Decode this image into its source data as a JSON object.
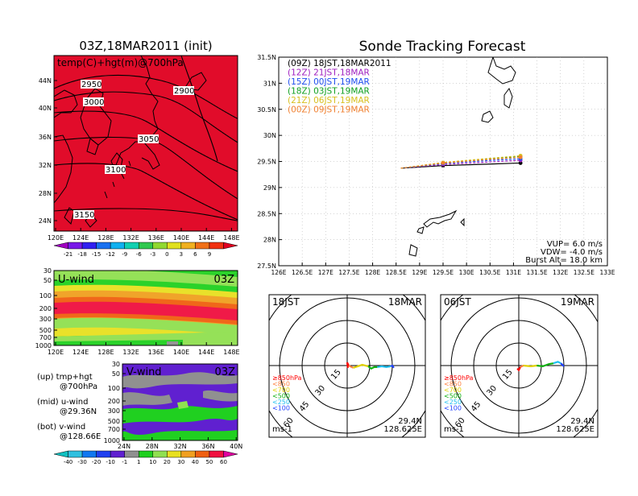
{
  "left": {
    "title": "03Z,18MAR2011 (init)",
    "map_label": "temp(C)+hgt(m)@700hPa",
    "lat_ticks": [
      "44N",
      "40N",
      "36N",
      "32N",
      "28N",
      "24N"
    ],
    "lon_ticks": [
      "120E",
      "124E",
      "128E",
      "132E",
      "136E",
      "140E",
      "144E",
      "148E"
    ],
    "contour_labels": [
      "2950",
      "2900",
      "3000",
      "3050",
      "3100",
      "3150"
    ],
    "temp_colorbar": [
      "-21",
      "-18",
      "-15",
      "-12",
      "-9",
      "-6",
      "-3",
      "0",
      "3",
      "6",
      "9"
    ],
    "u_label": "U-wind",
    "u_time": "03Z",
    "u_pressure_ticks": [
      "30",
      "50",
      "100",
      "200",
      "300",
      "500",
      "700",
      "1000"
    ],
    "u_lon_ticks": [
      "120E",
      "124E",
      "128E",
      "132E",
      "136E",
      "140E",
      "144E",
      "148E"
    ],
    "v_label": "V-wind",
    "v_time": "03Z",
    "v_pressure_ticks": [
      "30",
      "50",
      "100",
      "200",
      "300",
      "500",
      "700",
      "1000"
    ],
    "v_lat_ticks": [
      "24N",
      "28N",
      "32N",
      "36N",
      "40N"
    ],
    "legend": {
      "up1": "(up) tmp+hgt",
      "up2": "@700hPa",
      "mid1": "(mid) u-wind",
      "mid2": "@29.36N",
      "bot1": "(bot) v-wind",
      "bot2": "@128.66E"
    },
    "wind_colorbar": [
      "-40",
      "-30",
      "-20",
      "-10",
      "-1",
      "1",
      "10",
      "20",
      "30",
      "40",
      "50",
      "60"
    ]
  },
  "right": {
    "title": "Sonde Tracking Forecast",
    "lat_ticks": [
      "31.5N",
      "31N",
      "30.5N",
      "30N",
      "29.5N",
      "29N",
      "28.5N",
      "28N",
      "27.5N"
    ],
    "lon_ticks": [
      "126E",
      "126.5E",
      "127E",
      "127.5E",
      "128E",
      "128.5E",
      "129E",
      "129.5E",
      "130E",
      "130.5E",
      "131E",
      "131.5E",
      "132E",
      "132.5E",
      "133E"
    ],
    "runs": [
      {
        "label": "(09Z)  18JST,18MAR2011",
        "color": "#000000"
      },
      {
        "label": "(12Z)  21JST,18MAR",
        "color": "#a020c0"
      },
      {
        "label": "(15Z)  00JST,19MAR",
        "color": "#2050f0"
      },
      {
        "label": "(18Z)  03JST,19MAR",
        "color": "#10a020"
      },
      {
        "label": "(21Z)  06JST,19MAR",
        "color": "#d8c020"
      },
      {
        "label": "(00Z)  09JST,19MAR",
        "color": "#f08030"
      }
    ],
    "info": {
      "vup": "VUP=  6.0  m/s",
      "vdw": "VDW= -4.0  m/s",
      "burst": "Burst Alt=  18.0  km"
    }
  },
  "hodo1": {
    "time": "18JST",
    "date": "18MAR",
    "rings": [
      "15",
      "30",
      "45",
      "60"
    ],
    "levels": [
      "≥850hPa",
      "<850",
      "<700",
      "<500",
      "<250",
      "<100"
    ],
    "units": "ms-1",
    "lat": "29.4N",
    "lon": "128.625E"
  },
  "hodo2": {
    "time": "06JST",
    "date": "19MAR",
    "rings": [
      "15",
      "30",
      "45",
      "60"
    ],
    "levels": [
      "≥850hPa",
      "<850",
      "<700",
      "<500",
      "<250",
      "<100"
    ],
    "units": "ms-1",
    "lat": "29.4N",
    "lon": "128.625E"
  },
  "colors": {
    "level_colors": [
      "#ff0000",
      "#ff8040",
      "#e0d000",
      "#10b010",
      "#20c0f0",
      "#2040ff"
    ],
    "temp_scale": [
      "#a000c0",
      "#7818e8",
      "#3020f0",
      "#1870f0",
      "#10b0f0",
      "#10d0b0",
      "#30c850",
      "#90d830",
      "#e0e020",
      "#f0b020",
      "#f07018",
      "#f03010",
      "#e00020"
    ],
    "wind_scale": [
      "#10c0c0",
      "#30c0e0",
      "#1078f0",
      "#2040f0",
      "#6020d0",
      "#909090",
      "#20d020",
      "#90e050",
      "#e8e020",
      "#f0a020",
      "#f06010",
      "#f01040",
      "#e000a0"
    ]
  },
  "chart_data": [
    {
      "type": "heatmap",
      "title": "03Z,18MAR2011 (init)",
      "subtitle": "temp(C)+hgt(m)@700hPa",
      "x_ticks": [
        "120E",
        "124E",
        "128E",
        "132E",
        "136E",
        "140E",
        "144E",
        "148E"
      ],
      "y_ticks": [
        "24N",
        "28N",
        "32N",
        "36N",
        "40N",
        "44N"
      ],
      "colorbar": [
        -21,
        -18,
        -15,
        -12,
        -9,
        -6,
        -3,
        0,
        3,
        6,
        9
      ],
      "contours": [
        2900,
        2950,
        3000,
        3050,
        3100,
        3150
      ]
    },
    {
      "type": "heatmap",
      "title": "U-wind",
      "x_ticks": [
        "120E",
        "124E",
        "128E",
        "132E",
        "136E",
        "140E",
        "144E",
        "148E"
      ],
      "y_ticks": [
        30,
        50,
        100,
        200,
        300,
        500,
        700,
        1000
      ],
      "colorbar": [
        -40,
        -30,
        -20,
        -10,
        -1,
        1,
        10,
        20,
        30,
        40,
        50,
        60
      ]
    },
    {
      "type": "heatmap",
      "title": "V-wind",
      "x_ticks": [
        "24N",
        "28N",
        "32N",
        "36N",
        "40N"
      ],
      "y_ticks": [
        30,
        50,
        100,
        200,
        300,
        500,
        700,
        1000
      ],
      "colorbar": [
        -40,
        -30,
        -20,
        -10,
        -1,
        1,
        10,
        20,
        30,
        40,
        50,
        60
      ]
    },
    {
      "type": "line",
      "title": "Sonde Tracking Forecast",
      "xlim": [
        126,
        133
      ],
      "ylim": [
        27.5,
        31.5
      ],
      "launch": {
        "lon": 128.6,
        "lat": 29.37
      },
      "series": [
        {
          "name": "(09Z)  18JST,18MAR2011",
          "lon": [
            128.6,
            129.5,
            130.5,
            131.15
          ],
          "lat": [
            29.37,
            29.42,
            29.45,
            29.47
          ]
        },
        {
          "name": "(12Z)  21JST,18MAR",
          "lon": [
            128.6,
            129.5,
            130.5,
            131.15
          ],
          "lat": [
            29.37,
            29.44,
            29.49,
            29.52
          ]
        },
        {
          "name": "(15Z)  00JST,19MAR",
          "lon": [
            128.6,
            129.5,
            130.5,
            131.15
          ],
          "lat": [
            29.37,
            29.46,
            29.52,
            29.55
          ]
        },
        {
          "name": "(18Z)  03JST,19MAR",
          "lon": [
            128.6,
            129.5,
            130.5,
            131.15
          ],
          "lat": [
            29.37,
            29.47,
            29.55,
            29.59
          ]
        },
        {
          "name": "(21Z)  06JST,19MAR",
          "lon": [
            128.6,
            129.5,
            130.5,
            131.15
          ],
          "lat": [
            29.37,
            29.48,
            29.56,
            29.61
          ]
        },
        {
          "name": "(00Z)  09JST,19MAR",
          "lon": [
            128.6,
            129.5,
            130.5,
            131.15
          ],
          "lat": [
            29.37,
            29.47,
            29.54,
            29.58
          ]
        }
      ]
    },
    {
      "type": "line",
      "title": "18JST 18MAR hodograph",
      "ring_values": [
        15,
        30,
        45,
        60
      ],
      "series": [
        {
          "name": "≥850hPa",
          "u": [
            0.5,
            0,
            1
          ],
          "v": [
            -1.5,
            2,
            0
          ]
        },
        {
          "name": "<850",
          "u": [
            1,
            4
          ],
          "v": [
            0,
            -1.5
          ]
        },
        {
          "name": "<700",
          "u": [
            4,
            10,
            14
          ],
          "v": [
            -1.5,
            0.5,
            -0.5
          ]
        },
        {
          "name": "<500",
          "u": [
            14,
            16,
            18,
            20
          ],
          "v": [
            -0.5,
            -2,
            -1,
            -1
          ]
        },
        {
          "name": "<250",
          "u": [
            20,
            23,
            26,
            29
          ],
          "v": [
            -1,
            -0.5,
            -1,
            -0.5
          ]
        },
        {
          "name": "<100",
          "u": [
            29,
            30,
            31
          ],
          "v": [
            -0.5,
            0,
            -1.5
          ]
        }
      ]
    },
    {
      "type": "line",
      "title": "06JST 19MAR hodograph",
      "ring_values": [
        15,
        30,
        45,
        60
      ],
      "series": [
        {
          "name": "≥850hPa",
          "u": [
            -1,
            0,
            1
          ],
          "v": [
            -2,
            -3,
            -1
          ]
        },
        {
          "name": "<850",
          "u": [
            1,
            3
          ],
          "v": [
            -1,
            0
          ]
        },
        {
          "name": "<700",
          "u": [
            3,
            8,
            12
          ],
          "v": [
            0,
            -0.5,
            0
          ]
        },
        {
          "name": "<500",
          "u": [
            12,
            16,
            20,
            23
          ],
          "v": [
            0,
            -0.5,
            1,
            1.5
          ]
        },
        {
          "name": "<250",
          "u": [
            23,
            26,
            28
          ],
          "v": [
            1.5,
            2.5,
            1.5
          ]
        },
        {
          "name": "<100",
          "u": [
            28,
            29,
            30
          ],
          "v": [
            1.5,
            0.5,
            -0.5
          ]
        }
      ]
    }
  ]
}
